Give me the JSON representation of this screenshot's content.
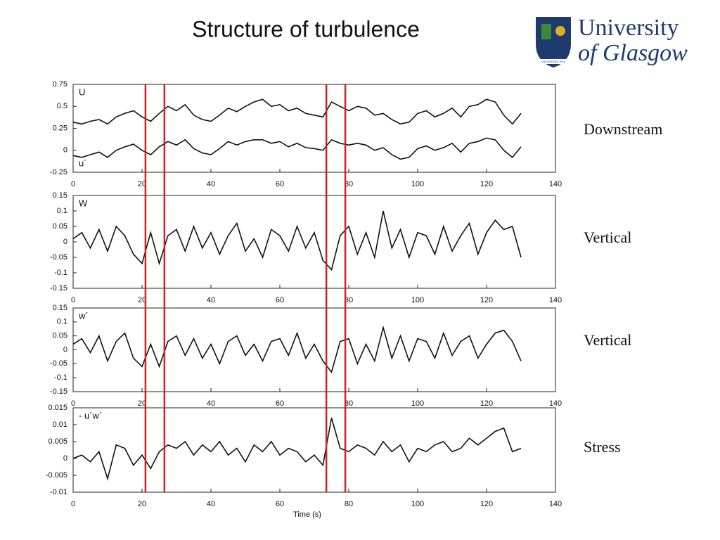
{
  "slide_title": "Structure of turbulence",
  "logo": {
    "line1": "University",
    "line2": "of Glasgow",
    "motto": "VIA VERITAS VITA"
  },
  "highlight_x": [
    21,
    26.5,
    73.5,
    79
  ],
  "highlight_color": "#d42020",
  "chart_data": [
    {
      "type": "line",
      "annotation": "Downstream",
      "xlim": [
        0,
        140
      ],
      "xticks": [
        0,
        20,
        40,
        60,
        80,
        100,
        120,
        140
      ],
      "ylim": [
        -0.25,
        0.75
      ],
      "yticks": [
        0.75,
        0.5,
        0.25,
        0,
        -0.25
      ],
      "x": [
        0,
        2.5,
        5,
        7.5,
        10,
        12.5,
        15,
        17.5,
        20,
        22.5,
        25,
        27.5,
        30,
        32.5,
        35,
        37.5,
        40,
        42.5,
        45,
        47.5,
        50,
        52.5,
        55,
        57.5,
        60,
        62.5,
        65,
        67.5,
        70,
        72.5,
        75,
        77.5,
        80,
        82.5,
        85,
        87.5,
        90,
        92.5,
        95,
        97.5,
        100,
        102.5,
        105,
        107.5,
        110,
        112.5,
        115,
        117.5,
        120,
        122.5,
        125,
        127.5,
        130
      ],
      "series": [
        {
          "name": "U",
          "color": "#111111",
          "values": [
            0.32,
            0.3,
            0.33,
            0.35,
            0.3,
            0.38,
            0.42,
            0.45,
            0.38,
            0.33,
            0.42,
            0.5,
            0.45,
            0.52,
            0.4,
            0.35,
            0.33,
            0.4,
            0.48,
            0.44,
            0.5,
            0.55,
            0.58,
            0.5,
            0.52,
            0.45,
            0.48,
            0.42,
            0.4,
            0.38,
            0.55,
            0.5,
            0.45,
            0.5,
            0.48,
            0.4,
            0.42,
            0.35,
            0.3,
            0.32,
            0.42,
            0.45,
            0.38,
            0.42,
            0.48,
            0.38,
            0.5,
            0.52,
            0.58,
            0.55,
            0.4,
            0.3,
            0.42
          ]
        },
        {
          "name": "u´",
          "color": "#111111",
          "values": [
            -0.06,
            -0.08,
            -0.05,
            -0.02,
            -0.08,
            0,
            0.04,
            0.07,
            0,
            -0.05,
            0.04,
            0.1,
            0.06,
            0.12,
            0.02,
            -0.03,
            -0.05,
            0.02,
            0.1,
            0.06,
            0.1,
            0.12,
            0.12,
            0.08,
            0.1,
            0.04,
            0.08,
            0.03,
            0.02,
            0,
            0.12,
            0.08,
            0.06,
            0.08,
            0.06,
            0,
            0.03,
            -0.05,
            -0.1,
            -0.08,
            0.02,
            0.05,
            0,
            0.03,
            0.08,
            -0.02,
            0.08,
            0.1,
            0.14,
            0.12,
            0,
            -0.08,
            0.04
          ]
        }
      ]
    },
    {
      "type": "line",
      "annotation": "Vertical",
      "xlim": [
        0,
        140
      ],
      "xticks": [
        0,
        20,
        40,
        60,
        80,
        100,
        120,
        140
      ],
      "ylim": [
        -0.15,
        0.15
      ],
      "yticks": [
        0.15,
        0.1,
        0.05,
        0,
        -0.05,
        -0.1,
        -0.15
      ],
      "x": [
        0,
        2.5,
        5,
        7.5,
        10,
        12.5,
        15,
        17.5,
        20,
        22.5,
        25,
        27.5,
        30,
        32.5,
        35,
        37.5,
        40,
        42.5,
        45,
        47.5,
        50,
        52.5,
        55,
        57.5,
        60,
        62.5,
        65,
        67.5,
        70,
        72.5,
        75,
        77.5,
        80,
        82.5,
        85,
        87.5,
        90,
        92.5,
        95,
        97.5,
        100,
        102.5,
        105,
        107.5,
        110,
        112.5,
        115,
        117.5,
        120,
        122.5,
        125,
        127.5,
        130
      ],
      "series": [
        {
          "name": "W",
          "color": "#111111",
          "values": [
            0.01,
            0.03,
            -0.02,
            0.04,
            -0.03,
            0.05,
            0.02,
            -0.04,
            -0.07,
            0.03,
            -0.07,
            0.02,
            0.04,
            -0.03,
            0.05,
            -0.02,
            0.03,
            -0.04,
            0.02,
            0.06,
            -0.03,
            0.01,
            -0.05,
            0.04,
            0.02,
            -0.03,
            0.05,
            -0.02,
            0.03,
            -0.06,
            -0.09,
            0.02,
            0.05,
            -0.04,
            0.03,
            -0.05,
            0.1,
            -0.02,
            0.04,
            -0.05,
            0.03,
            0.02,
            -0.04,
            0.05,
            -0.03,
            0.02,
            0.06,
            -0.04,
            0.03,
            0.07,
            0.04,
            0.05,
            -0.05
          ]
        }
      ]
    },
    {
      "type": "line",
      "annotation": "Vertical",
      "xlim": [
        0,
        140
      ],
      "xticks": [
        0,
        20,
        40,
        60,
        80,
        100,
        120,
        140
      ],
      "ylim": [
        -0.15,
        0.15
      ],
      "yticks": [
        0.15,
        0.1,
        0.05,
        0,
        -0.05,
        -0.1,
        -0.15
      ],
      "x": [
        0,
        2.5,
        5,
        7.5,
        10,
        12.5,
        15,
        17.5,
        20,
        22.5,
        25,
        27.5,
        30,
        32.5,
        35,
        37.5,
        40,
        42.5,
        45,
        47.5,
        50,
        52.5,
        55,
        57.5,
        60,
        62.5,
        65,
        67.5,
        70,
        72.5,
        75,
        77.5,
        80,
        82.5,
        85,
        87.5,
        90,
        92.5,
        95,
        97.5,
        100,
        102.5,
        105,
        107.5,
        110,
        112.5,
        115,
        117.5,
        120,
        122.5,
        125,
        127.5,
        130
      ],
      "series": [
        {
          "name": "w´",
          "color": "#111111",
          "values": [
            0.02,
            0.04,
            -0.01,
            0.05,
            -0.04,
            0.03,
            0.06,
            -0.03,
            -0.06,
            0.02,
            -0.06,
            0.03,
            0.05,
            -0.02,
            0.04,
            -0.03,
            0.02,
            -0.05,
            0.03,
            0.05,
            -0.02,
            0.02,
            -0.04,
            0.03,
            0.04,
            -0.02,
            0.06,
            -0.03,
            0.02,
            -0.04,
            -0.08,
            0.03,
            0.04,
            -0.05,
            0.02,
            -0.04,
            0.08,
            -0.03,
            0.05,
            -0.04,
            0.04,
            0.03,
            -0.03,
            0.06,
            -0.02,
            0.03,
            0.05,
            -0.03,
            0.02,
            0.06,
            0.07,
            0.03,
            -0.04
          ]
        }
      ]
    },
    {
      "type": "line",
      "annotation": "Stress",
      "x_label": "Time (s)",
      "xlim": [
        0,
        140
      ],
      "xticks": [
        0,
        20,
        40,
        60,
        80,
        100,
        120,
        140
      ],
      "ylim": [
        -0.01,
        0.015
      ],
      "yticks": [
        0.015,
        0.01,
        0.005,
        0,
        -0.005,
        -0.01
      ],
      "x": [
        0,
        2.5,
        5,
        7.5,
        10,
        12.5,
        15,
        17.5,
        20,
        22.5,
        25,
        27.5,
        30,
        32.5,
        35,
        37.5,
        40,
        42.5,
        45,
        47.5,
        50,
        52.5,
        55,
        57.5,
        60,
        62.5,
        65,
        67.5,
        70,
        72.5,
        75,
        77.5,
        80,
        82.5,
        85,
        87.5,
        90,
        92.5,
        95,
        97.5,
        100,
        102.5,
        105,
        107.5,
        110,
        112.5,
        115,
        117.5,
        120,
        122.5,
        125,
        127.5,
        130
      ],
      "series": [
        {
          "name": "- u´w´",
          "color": "#111111",
          "values": [
            0,
            0.001,
            -0.001,
            0.002,
            -0.006,
            0.004,
            0.003,
            -0.002,
            0.001,
            -0.003,
            0.002,
            0.004,
            0.003,
            0.005,
            0.001,
            0.004,
            0.002,
            0.005,
            0.001,
            0.003,
            -0.001,
            0.004,
            0.002,
            0.005,
            0.001,
            0.003,
            0.002,
            -0.001,
            0.001,
            -0.002,
            0.012,
            0.003,
            0.002,
            0.004,
            0.003,
            0.001,
            0.005,
            0.002,
            0.004,
            -0.001,
            0.003,
            0.002,
            0.004,
            0.005,
            0.002,
            0.003,
            0.006,
            0.004,
            0.006,
            0.008,
            0.009,
            0.002,
            0.003
          ]
        }
      ]
    }
  ]
}
